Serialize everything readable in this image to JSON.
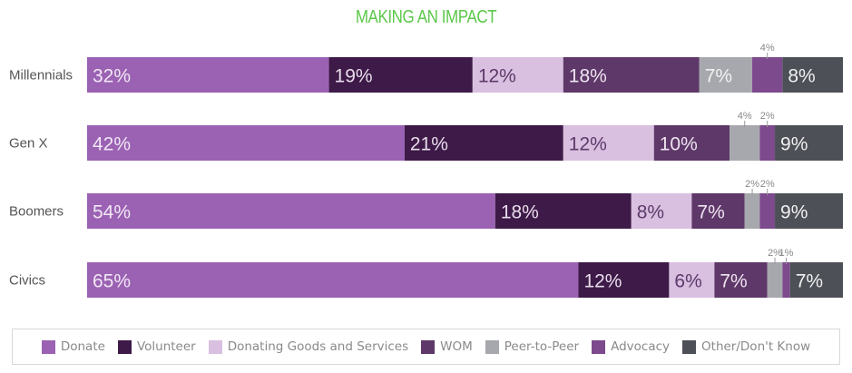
{
  "chart_data": {
    "type": "bar",
    "orientation": "horizontal",
    "stacked": true,
    "title": "MAKING AN IMPACT",
    "xlabel": "",
    "ylabel": "",
    "xlim": [
      0,
      100
    ],
    "grid": false,
    "legend_position": "bottom",
    "categories": [
      "Millennials",
      "Gen X",
      "Boomers",
      "Civics"
    ],
    "series": [
      {
        "name": "Donate",
        "color": "#9b62b3",
        "label_color": "#f1e6f5",
        "values": [
          32,
          42,
          54,
          65
        ],
        "labels": [
          "32%",
          "42%",
          "54%",
          "65%"
        ]
      },
      {
        "name": "Volunteer",
        "color": "#3d1a47",
        "label_color": "#e8dcec",
        "values": [
          19,
          21,
          18,
          12
        ],
        "labels": [
          "19%",
          "21%",
          "18%",
          "12%"
        ]
      },
      {
        "name": "Donating Goods and Services",
        "color": "#d9bfe0",
        "label_color": "#5d3a6a",
        "values": [
          12,
          12,
          8,
          6
        ],
        "labels": [
          "12%",
          "12%",
          "8%",
          "6%"
        ]
      },
      {
        "name": "WOM",
        "color": "#5e3868",
        "label_color": "#eee4f1",
        "values": [
          18,
          10,
          7,
          7
        ],
        "labels": [
          "18%",
          "10%",
          "7%",
          "7%"
        ]
      },
      {
        "name": "Peer-to-Peer",
        "color": "#a6a8ad",
        "label_color": "#f2f2f2",
        "values": [
          7,
          4,
          2,
          2
        ],
        "labels": [
          "7%",
          "4%",
          "2%",
          "2%"
        ],
        "outside": [
          false,
          true,
          true,
          true
        ]
      },
      {
        "name": "Advocacy",
        "color": "#7c4a8d",
        "label_color": "#f2f2f2",
        "values": [
          4,
          2,
          2,
          1
        ],
        "labels": [
          "4%",
          "2%",
          "2%",
          "1%"
        ],
        "outside": [
          true,
          true,
          true,
          true
        ]
      },
      {
        "name": "Other/Don't Know",
        "color": "#4d5057",
        "label_color": "#f0f0f0",
        "values": [
          8,
          9,
          9,
          7
        ],
        "labels": [
          "8%",
          "9%",
          "9%",
          "7%"
        ]
      }
    ]
  }
}
